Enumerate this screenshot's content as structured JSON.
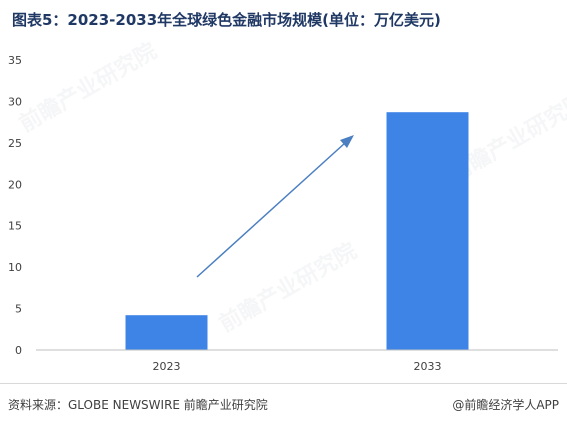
{
  "title": "图表5：2023-2033年全球绿色金融市场规模(单位：万亿美元)",
  "footer": {
    "source": "资料来源：GLOBE  NEWSWIRE 前瞻产业研究院",
    "credit": "@前瞻经济学人APP"
  },
  "watermark": "前瞻产业研究院",
  "colors": {
    "bar": "#3d84e6",
    "arrow": "#4a7fc1",
    "axis": "#bfbfbf",
    "tick_text": "#404040"
  },
  "chart_data": {
    "type": "bar",
    "title": "图表5：2023-2033年全球绿色金融市场规模(单位：万亿美元)",
    "categories": [
      "2023",
      "2033"
    ],
    "values": [
      4.2,
      28.7
    ],
    "ylim": [
      0,
      35
    ],
    "yticks": [
      0,
      5,
      10,
      15,
      20,
      25,
      30,
      35
    ],
    "xlabel": "",
    "ylabel": "",
    "grid": false,
    "legend": "none",
    "annotation": "upward trend arrow"
  }
}
